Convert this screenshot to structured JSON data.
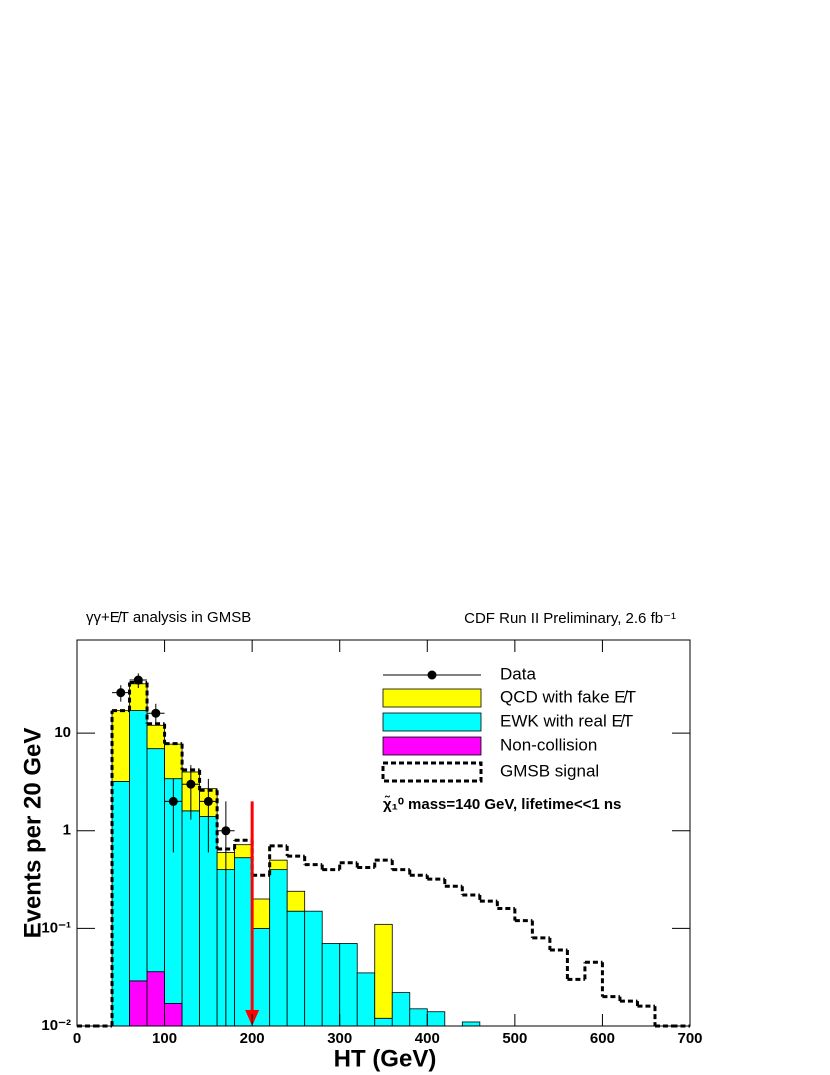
{
  "chart_data": {
    "type": "histogram",
    "title_left": "γγ+E̸T analysis in GMSB",
    "title_right": "CDF Run II Preliminary, 2.6 fb⁻¹",
    "xlabel": "HT (GeV)",
    "ylabel": "Events per 20 GeV",
    "log_y": true,
    "legend": "upper right",
    "xlim": [
      0,
      700
    ],
    "ylim": [
      0.01,
      90
    ],
    "xticks": [
      0,
      100,
      200,
      300,
      400,
      500,
      600,
      700
    ],
    "yticks": [
      {
        "value": 0.01,
        "label": "10⁻²"
      },
      {
        "value": 0.1,
        "label": "10⁻¹"
      },
      1,
      10
    ],
    "bins": [
      0,
      20,
      40,
      60,
      80,
      100,
      120,
      140,
      160,
      180,
      200,
      220,
      240,
      260,
      280,
      300,
      320,
      340,
      360,
      380,
      400,
      420,
      440,
      460,
      480,
      500,
      520,
      540,
      560,
      580,
      600,
      620,
      640,
      660,
      680,
      700
    ],
    "series": [
      {
        "name": "QCD with fake E̸T",
        "color": "#ffff00",
        "values": [
          null,
          null,
          13.8,
          15,
          5.1,
          4.3,
          2.4,
          1.3,
          0.2,
          0.19,
          0.1,
          0.1,
          0.09,
          null,
          null,
          null,
          null,
          0.098,
          null,
          null,
          null,
          null,
          null,
          null,
          null,
          null,
          null,
          null,
          null,
          null,
          null,
          null,
          null,
          null,
          null
        ]
      },
      {
        "name": "EWK with real E̸T",
        "color": "#00ffff",
        "values": [
          null,
          null,
          3.2,
          17,
          6.9,
          3.4,
          1.6,
          1.4,
          0.4,
          0.53,
          0.1,
          0.4,
          0.15,
          0.15,
          0.07,
          0.07,
          0.035,
          0.012,
          0.022,
          0.015,
          0.014,
          null,
          0.011,
          null,
          null,
          null,
          null,
          null,
          null,
          null,
          null,
          null,
          null,
          null,
          null
        ]
      },
      {
        "name": "Non-collision",
        "color": "#ff00ff",
        "values": [
          null,
          null,
          null,
          0.029,
          0.036,
          0.017,
          null,
          null,
          null,
          null,
          null,
          null,
          null,
          null,
          null,
          null,
          null,
          null,
          null,
          null,
          null,
          null,
          null,
          null,
          null,
          null,
          null,
          null,
          null,
          null,
          null,
          null,
          null,
          null,
          null
        ]
      }
    ],
    "signal": {
      "name": "GMSB signal",
      "color": "#000000",
      "values": [
        0.01,
        0.01,
        17,
        33,
        12.5,
        7.8,
        4.2,
        2.6,
        0.65,
        0.8,
        0.35,
        0.7,
        0.55,
        0.45,
        0.4,
        0.47,
        0.42,
        0.5,
        0.4,
        0.35,
        0.32,
        0.27,
        0.22,
        0.19,
        0.16,
        0.12,
        0.08,
        0.06,
        0.03,
        0.045,
        0.02,
        0.018,
        0.016,
        0.01,
        0.01
      ]
    },
    "data": {
      "name": "Data",
      "color": "#000000",
      "x": [
        50,
        70,
        90,
        110,
        130,
        150,
        170
      ],
      "values": [
        26,
        35,
        16,
        2,
        3,
        2,
        1
      ],
      "errors": [
        5,
        6,
        4,
        1.4,
        1.7,
        1.4,
        1
      ]
    },
    "annotation": "χ̃₁⁰ mass=140 GeV, lifetime<<1 ns",
    "cut": {
      "x": 200,
      "from": 2,
      "to": 0.01,
      "color": "#ff0000"
    }
  }
}
